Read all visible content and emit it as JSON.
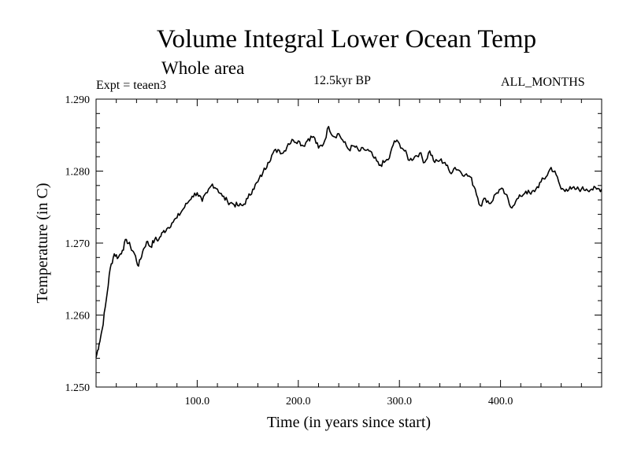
{
  "chart_data": {
    "type": "line",
    "title": "Volume Integral Lower Ocean Temp",
    "subtitle": "Whole area",
    "experiment": "Expt = teaen3",
    "period": "12.5kyr BP",
    "months": "ALL_MONTHS",
    "xlabel": "Time (in years since start)",
    "ylabel": "Temperature (in C)",
    "xlim": [
      0,
      500
    ],
    "ylim": [
      1.25,
      1.29
    ],
    "xticks": [
      100,
      200,
      300,
      400
    ],
    "xtick_labels": [
      "100.0",
      "200.0",
      "300.0",
      "400.0"
    ],
    "yticks": [
      1.25,
      1.26,
      1.27,
      1.28,
      1.29
    ],
    "ytick_labels": [
      "1.250",
      "1.260",
      "1.270",
      "1.280",
      "1.290"
    ],
    "series": [
      {
        "name": "Lower Ocean Temp",
        "x": [
          0,
          3,
          6,
          10,
          14,
          18,
          22,
          26,
          30,
          34,
          38,
          42,
          46,
          50,
          54,
          58,
          62,
          66,
          70,
          75,
          80,
          85,
          90,
          95,
          100,
          105,
          110,
          115,
          120,
          125,
          130,
          135,
          140,
          145,
          150,
          155,
          160,
          165,
          170,
          175,
          180,
          185,
          190,
          195,
          200,
          205,
          210,
          215,
          220,
          225,
          230,
          235,
          240,
          245,
          250,
          255,
          260,
          265,
          270,
          275,
          280,
          285,
          290,
          295,
          300,
          305,
          310,
          315,
          320,
          325,
          330,
          335,
          340,
          345,
          350,
          355,
          360,
          365,
          370,
          375,
          380,
          385,
          390,
          395,
          400,
          405,
          410,
          415,
          420,
          425,
          430,
          435,
          440,
          445,
          450,
          455,
          460,
          465,
          470,
          475,
          480,
          485,
          490,
          495,
          500
        ],
        "values": [
          1.2541,
          1.256,
          1.258,
          1.262,
          1.2665,
          1.2685,
          1.268,
          1.269,
          1.2705,
          1.2695,
          1.2685,
          1.2668,
          1.2688,
          1.2702,
          1.2695,
          1.2705,
          1.2705,
          1.2715,
          1.272,
          1.2728,
          1.2735,
          1.2745,
          1.2755,
          1.2765,
          1.277,
          1.2758,
          1.277,
          1.2782,
          1.2775,
          1.2765,
          1.2758,
          1.2755,
          1.2752,
          1.2752,
          1.2762,
          1.2775,
          1.2785,
          1.2798,
          1.2812,
          1.2825,
          1.283,
          1.2825,
          1.2838,
          1.2843,
          1.2842,
          1.2835,
          1.2845,
          1.2848,
          1.2832,
          1.2838,
          1.2862,
          1.2848,
          1.2852,
          1.284,
          1.283,
          1.2835,
          1.2828,
          1.283,
          1.2828,
          1.2818,
          1.2808,
          1.2812,
          1.2818,
          1.2842,
          1.2838,
          1.2828,
          1.2815,
          1.282,
          1.2825,
          1.2812,
          1.2828,
          1.2812,
          1.2815,
          1.2812,
          1.2798,
          1.2805,
          1.28,
          1.2795,
          1.2792,
          1.2775,
          1.2752,
          1.2762,
          1.2755,
          1.2768,
          1.2775,
          1.2768,
          1.275,
          1.2758,
          1.2765,
          1.2772,
          1.2768,
          1.2775,
          1.2785,
          1.2792,
          1.2805,
          1.2795,
          1.2775,
          1.2775,
          1.2775,
          1.2775,
          1.2775,
          1.2775,
          1.2775,
          1.2775,
          1.2775
        ]
      }
    ]
  }
}
